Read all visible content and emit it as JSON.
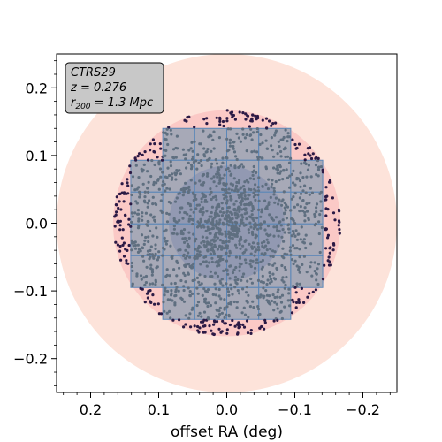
{
  "chart_data": {
    "type": "scatter",
    "title": "",
    "xlabel": "offset RA (deg)",
    "ylabel": "",
    "xlim": [
      0.25,
      -0.25
    ],
    "ylim": [
      -0.25,
      0.25
    ],
    "x_inverted": true,
    "xticks": [
      0.2,
      0.1,
      0.0,
      -0.1,
      -0.2
    ],
    "xtick_labels": [
      "0.2",
      "0.1",
      "0.0",
      "−0.1",
      "−0.2"
    ],
    "yticks": [
      0.2,
      0.1,
      0.0,
      -0.1,
      -0.2
    ],
    "ytick_labels": [
      "0.2",
      "0.1",
      "0.0",
      "−0.1",
      "−0.2"
    ],
    "grid": false,
    "annotation": {
      "lines": [
        "CTRS29",
        "z = 0.276",
        "r200 = 1.3 Mpc"
      ],
      "placement": "top-left"
    },
    "regions": [
      {
        "shape": "circle",
        "center": [
          0,
          0
        ],
        "radius": 0.25,
        "color": "#fde3da"
      },
      {
        "shape": "circle",
        "center": [
          0,
          0
        ],
        "radius": 0.167,
        "color": "#fbc9c6"
      },
      {
        "shape": "circle",
        "center": [
          0,
          0
        ],
        "radius": 0.085,
        "color": "#9b7fb3"
      }
    ],
    "tile_grid": {
      "color": "#8fa0b2",
      "edge_color": "#5b87b8",
      "tile_size": 0.047,
      "rows": [
        {
          "y_center": 0.1165,
          "x_from": 0.094,
          "x_to": -0.094
        },
        {
          "y_center": 0.0695,
          "x_from": 0.141,
          "x_to": -0.141
        },
        {
          "y_center": 0.0225,
          "x_from": 0.141,
          "x_to": -0.141
        },
        {
          "y_center": -0.0245,
          "x_from": 0.141,
          "x_to": -0.141
        },
        {
          "y_center": -0.0715,
          "x_from": 0.141,
          "x_to": -0.141
        },
        {
          "y_center": -0.1185,
          "x_from": 0.094,
          "x_to": -0.094
        }
      ]
    },
    "series": [
      {
        "color_outside_tiles": "#2b1a45",
        "color_inside_tiles": "#5f6f80",
        "extent_radius": 0.167,
        "point_count": 1700
      }
    ]
  }
}
